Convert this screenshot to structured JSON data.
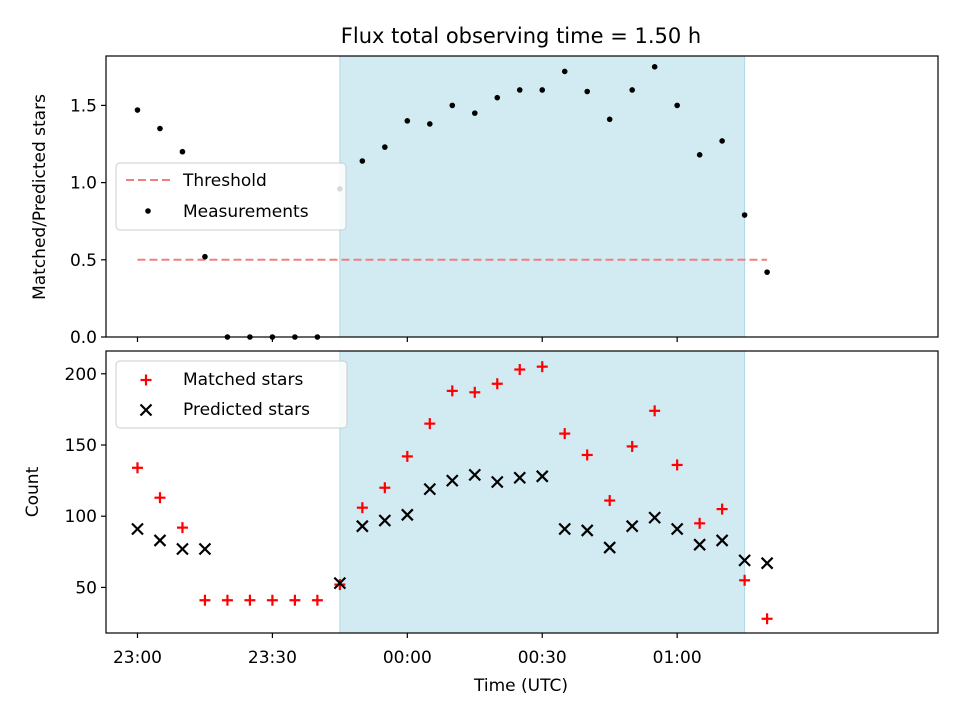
{
  "figure_title": "Flux total observing time = 1.50 h",
  "colors": {
    "shade": "#add8e6",
    "threshold": "#f08080",
    "measurement": "#000000",
    "matched": "#ff0000",
    "predicted": "#000000"
  },
  "chart_data": [
    {
      "type": "scatter",
      "title": "Flux total observing time = 1.50 h",
      "xlabel": "",
      "ylabel": "Matched/Predicted stars",
      "ylim": [
        0,
        1.82
      ],
      "yticks": [
        0.0,
        0.5,
        1.0,
        1.5
      ],
      "ytick_labels": [
        "0.0",
        "0.5",
        "1.0",
        "1.5"
      ],
      "xlim_minutes": [
        -7,
        178
      ],
      "x_tick_labels_shown": false,
      "legend_position": "center-left",
      "shaded_span": {
        "start": "23:45",
        "end": "01:15"
      },
      "x": [
        "23:00",
        "23:05",
        "23:10",
        "23:15",
        "23:20",
        "23:25",
        "23:30",
        "23:35",
        "23:40",
        "23:45",
        "23:50",
        "23:55",
        "00:00",
        "00:05",
        "00:10",
        "00:15",
        "00:20",
        "00:25",
        "00:30",
        "00:35",
        "00:40",
        "00:45",
        "00:50",
        "00:55",
        "01:00",
        "01:05",
        "01:10",
        "01:15",
        "01:20"
      ],
      "series": [
        {
          "name": "Threshold",
          "style": "dashed-line",
          "x_range": [
            "23:00",
            "01:20"
          ],
          "value": 0.5
        },
        {
          "name": "Measurements",
          "style": "dot",
          "values": [
            1.47,
            1.35,
            1.2,
            0.52,
            0.0,
            0.0,
            0.0,
            0.0,
            0.0,
            0.96,
            1.14,
            1.23,
            1.4,
            1.38,
            1.5,
            1.45,
            1.55,
            1.6,
            1.6,
            1.72,
            1.59,
            1.41,
            1.6,
            1.75,
            1.5,
            1.18,
            1.27,
            0.79,
            0.42
          ]
        }
      ]
    },
    {
      "type": "scatter",
      "title": "",
      "xlabel": "Time (UTC)",
      "ylabel": "Count",
      "ylim": [
        18,
        216
      ],
      "yticks": [
        50,
        100,
        150,
        200
      ],
      "ytick_labels": [
        "50",
        "100",
        "150",
        "200"
      ],
      "xlim_minutes": [
        -7,
        178
      ],
      "xticks": [
        "23:00",
        "23:30",
        "00:00",
        "00:30",
        "01:00"
      ],
      "legend_position": "top-left",
      "shaded_span": {
        "start": "23:45",
        "end": "01:15"
      },
      "x": [
        "23:00",
        "23:05",
        "23:10",
        "23:15",
        "23:20",
        "23:25",
        "23:30",
        "23:35",
        "23:40",
        "23:45",
        "23:50",
        "23:55",
        "00:00",
        "00:05",
        "00:10",
        "00:15",
        "00:20",
        "00:25",
        "00:30",
        "00:35",
        "00:40",
        "00:45",
        "00:50",
        "00:55",
        "01:00",
        "01:05",
        "01:10",
        "01:15",
        "01:20"
      ],
      "series": [
        {
          "name": "Matched stars",
          "marker": "plus",
          "values": [
            134,
            113,
            92,
            41,
            41,
            41,
            41,
            41,
            41,
            52,
            106,
            120,
            142,
            165,
            188,
            187,
            193,
            203,
            205,
            158,
            143,
            111,
            149,
            174,
            136,
            95,
            105,
            55,
            28
          ]
        },
        {
          "name": "Predicted stars",
          "marker": "x",
          "values": [
            91,
            83,
            77,
            77,
            null,
            null,
            null,
            null,
            null,
            53,
            93,
            97,
            101,
            119,
            125,
            129,
            124,
            127,
            128,
            91,
            90,
            78,
            93,
            99,
            91,
            80,
            83,
            69,
            67
          ]
        }
      ]
    }
  ]
}
